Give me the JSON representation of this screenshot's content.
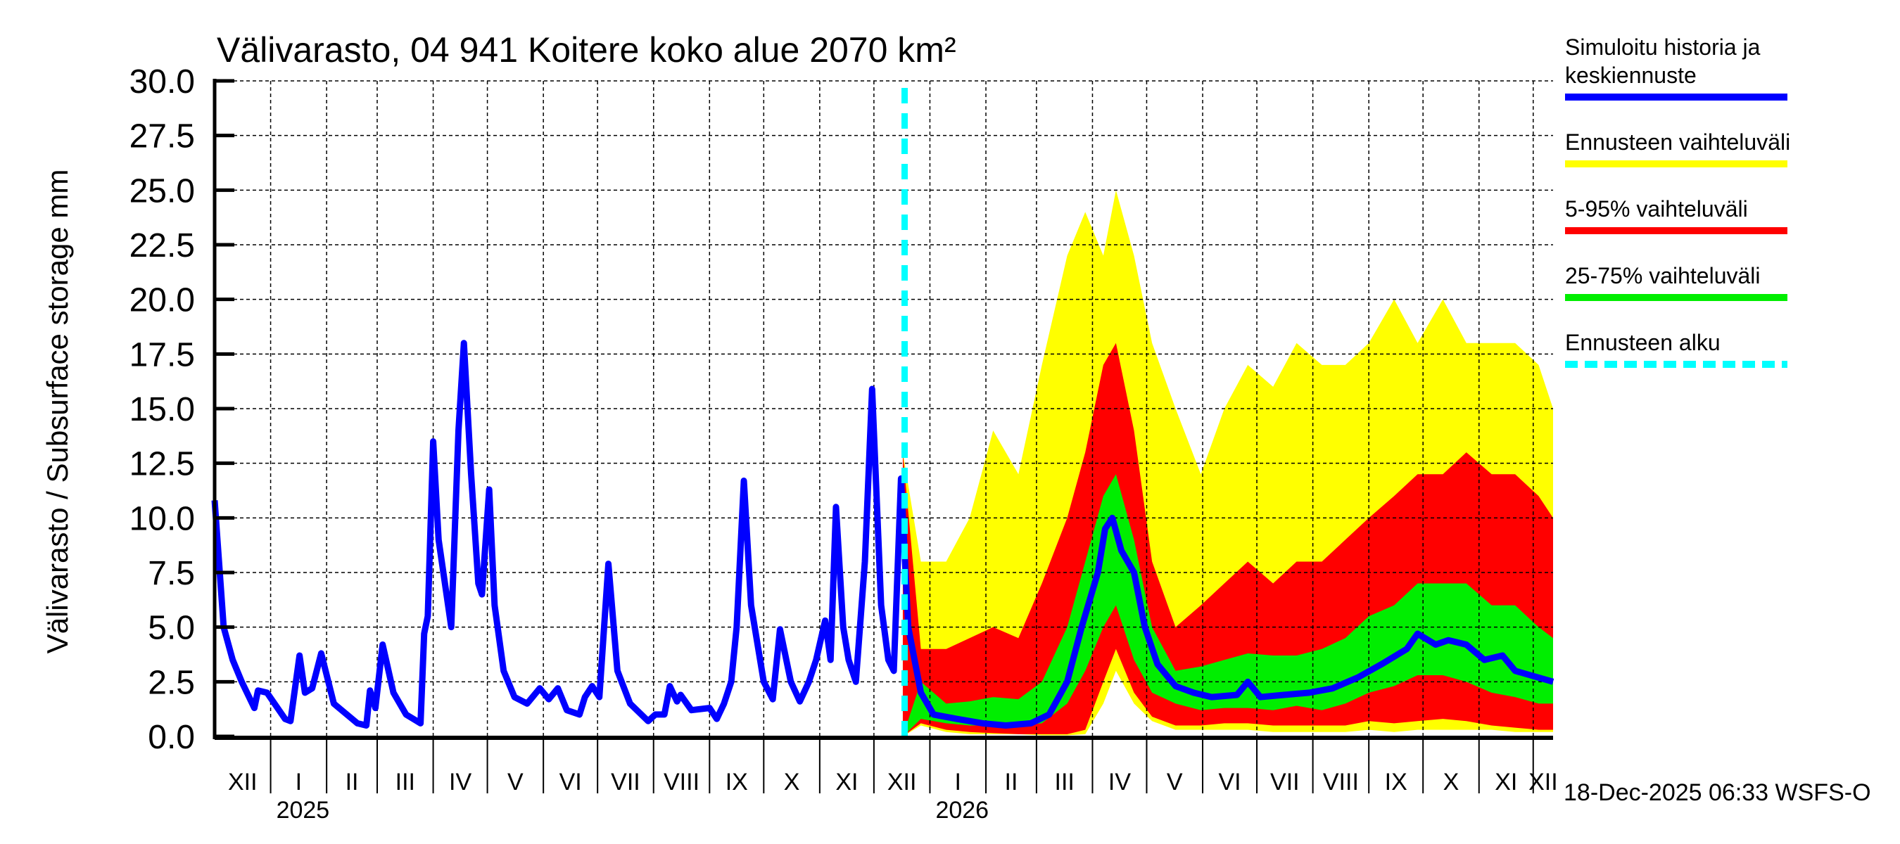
{
  "chart_data": {
    "type": "area",
    "title": "Välivarasto, 04 941 Koitere koko alue 2070 km²",
    "ylabel": "Välivarasto / Subsurface storage  mm",
    "xlabel": "",
    "x_unit": "days since 2024-12-01",
    "xlim": [
      0,
      741
    ],
    "ylim": [
      0,
      30
    ],
    "yticks": [
      "0.0",
      "2.5",
      "5.0",
      "7.5",
      "10.0",
      "12.5",
      "15.0",
      "17.5",
      "20.0",
      "22.5",
      "25.0",
      "27.5",
      "30.0"
    ],
    "grid": true,
    "months": [
      {
        "label": "XII",
        "start": 0,
        "end": 31
      },
      {
        "label": "I",
        "start": 31,
        "end": 62
      },
      {
        "label": "II",
        "start": 62,
        "end": 90
      },
      {
        "label": "III",
        "start": 90,
        "end": 121
      },
      {
        "label": "IV",
        "start": 121,
        "end": 151
      },
      {
        "label": "V",
        "start": 151,
        "end": 182
      },
      {
        "label": "VI",
        "start": 182,
        "end": 212
      },
      {
        "label": "VII",
        "start": 212,
        "end": 243
      },
      {
        "label": "VIII",
        "start": 243,
        "end": 274
      },
      {
        "label": "IX",
        "start": 274,
        "end": 304
      },
      {
        "label": "X",
        "start": 304,
        "end": 335
      },
      {
        "label": "XI",
        "start": 335,
        "end": 365
      },
      {
        "label": "XII",
        "start": 365,
        "end": 396
      },
      {
        "label": "I",
        "start": 396,
        "end": 427
      },
      {
        "label": "II",
        "start": 427,
        "end": 455
      },
      {
        "label": "III",
        "start": 455,
        "end": 486
      },
      {
        "label": "IV",
        "start": 486,
        "end": 516
      },
      {
        "label": "V",
        "start": 516,
        "end": 547
      },
      {
        "label": "VI",
        "start": 547,
        "end": 577
      },
      {
        "label": "VII",
        "start": 577,
        "end": 608
      },
      {
        "label": "VIII",
        "start": 608,
        "end": 639
      },
      {
        "label": "IX",
        "start": 639,
        "end": 669
      },
      {
        "label": "X",
        "start": 669,
        "end": 700
      },
      {
        "label": "XI",
        "start": 700,
        "end": 730
      },
      {
        "label": "XII",
        "start": 730,
        "end": 741
      }
    ],
    "years": [
      {
        "label": "2025",
        "at": 31
      },
      {
        "label": "2026",
        "at": 396
      }
    ],
    "forecast_start": 382,
    "legend": {
      "placement": "right",
      "entries": [
        {
          "label_lines": [
            "Simuloitu historia ja",
            "keskiennuste"
          ],
          "color": "#0000ff",
          "style": "solid"
        },
        {
          "label_lines": [
            "Ennusteen vaihteluväli"
          ],
          "color": "#ffff00",
          "style": "solid"
        },
        {
          "label_lines": [
            "5-95% vaihteluväli"
          ],
          "color": "#ff0000",
          "style": "solid"
        },
        {
          "label_lines": [
            "25-75% vaihteluväli"
          ],
          "color": "#00ee00",
          "style": "solid"
        },
        {
          "label_lines": [
            "Ennusteen alku"
          ],
          "color": "#00ffff",
          "style": "dashed"
        }
      ]
    },
    "series": [
      {
        "name": "Simuloitu historia ja keskiennuste",
        "color": "#0000ff",
        "points": [
          [
            0,
            10.8
          ],
          [
            5,
            5
          ],
          [
            10,
            3.5
          ],
          [
            15,
            2.5
          ],
          [
            22,
            1.3
          ],
          [
            24,
            2.1
          ],
          [
            29,
            2.0
          ],
          [
            39,
            0.8
          ],
          [
            42,
            0.7
          ],
          [
            47,
            3.7
          ],
          [
            50,
            2.0
          ],
          [
            54,
            2.2
          ],
          [
            59,
            3.8
          ],
          [
            66,
            1.5
          ],
          [
            79,
            0.6
          ],
          [
            84,
            0.5
          ],
          [
            86,
            2.1
          ],
          [
            89,
            1.3
          ],
          [
            93,
            4.2
          ],
          [
            99,
            2.0
          ],
          [
            106,
            1.0
          ],
          [
            114,
            0.6
          ],
          [
            116,
            4.7
          ],
          [
            118,
            5.5
          ],
          [
            121,
            13.5
          ],
          [
            124,
            9
          ],
          [
            131,
            5
          ],
          [
            135,
            14
          ],
          [
            138,
            18.0
          ],
          [
            142,
            12
          ],
          [
            146,
            7
          ],
          [
            148,
            6.5
          ],
          [
            152,
            11.3
          ],
          [
            155,
            6
          ],
          [
            160,
            3
          ],
          [
            166,
            1.8
          ],
          [
            173,
            1.5
          ],
          [
            180,
            2.2
          ],
          [
            185,
            1.7
          ],
          [
            190,
            2.2
          ],
          [
            195,
            1.2
          ],
          [
            202,
            1.0
          ],
          [
            205,
            1.8
          ],
          [
            209,
            2.3
          ],
          [
            213,
            1.8
          ],
          [
            218,
            7.9
          ],
          [
            223,
            3
          ],
          [
            230,
            1.5
          ],
          [
            240,
            0.7
          ],
          [
            244,
            1.0
          ],
          [
            249,
            1.0
          ],
          [
            252,
            2.3
          ],
          [
            256,
            1.6
          ],
          [
            258,
            1.9
          ],
          [
            264,
            1.2
          ],
          [
            274,
            1.3
          ],
          [
            278,
            0.8
          ],
          [
            282,
            1.5
          ],
          [
            286,
            2.5
          ],
          [
            289,
            5
          ],
          [
            293,
            11.7
          ],
          [
            297,
            6
          ],
          [
            304,
            2.5
          ],
          [
            309,
            1.7
          ],
          [
            313,
            4.9
          ],
          [
            319,
            2.5
          ],
          [
            324,
            1.6
          ],
          [
            329,
            2.5
          ],
          [
            333,
            3.5
          ],
          [
            338,
            5.3
          ],
          [
            341,
            3.5
          ],
          [
            344,
            10.5
          ],
          [
            348,
            5
          ],
          [
            351,
            3.5
          ],
          [
            355,
            2.5
          ],
          [
            360,
            8
          ],
          [
            364,
            15.9
          ],
          [
            369,
            6
          ],
          [
            373,
            3.5
          ],
          [
            376,
            3
          ],
          [
            380,
            11.8
          ],
          [
            384,
            5
          ],
          [
            391,
            2
          ],
          [
            398,
            1.0
          ],
          [
            411,
            0.8
          ],
          [
            425,
            0.6
          ],
          [
            438,
            0.5
          ],
          [
            452,
            0.6
          ],
          [
            462,
            1.0
          ],
          [
            472,
            2.5
          ],
          [
            480,
            5
          ],
          [
            489,
            7.5
          ],
          [
            493,
            9.5
          ],
          [
            497,
            10.0
          ],
          [
            502,
            8.5
          ],
          [
            509,
            7.5
          ],
          [
            515,
            5
          ],
          [
            522,
            3.3
          ],
          [
            532,
            2.3
          ],
          [
            542,
            2.0
          ],
          [
            552,
            1.8
          ],
          [
            566,
            1.9
          ],
          [
            572,
            2.5
          ],
          [
            579,
            1.8
          ],
          [
            592,
            1.9
          ],
          [
            606,
            2.0
          ],
          [
            619,
            2.2
          ],
          [
            633,
            2.7
          ],
          [
            646,
            3.3
          ],
          [
            660,
            4.0
          ],
          [
            666,
            4.7
          ],
          [
            676,
            4.2
          ],
          [
            683,
            4.4
          ],
          [
            693,
            4.2
          ],
          [
            703,
            3.5
          ],
          [
            713,
            3.7
          ],
          [
            720,
            3.0
          ],
          [
            741,
            2.5
          ]
        ]
      },
      {
        "name": "Forecast bands",
        "columns": [
          "day",
          "min",
          "p5",
          "p25",
          "p75",
          "p95",
          "max"
        ],
        "rows": [
          [
            381,
            0,
            0,
            0,
            0,
            13,
            13
          ],
          [
            391,
            0.5,
            0.6,
            0.8,
            2.5,
            4,
            8
          ],
          [
            405,
            0.2,
            0.3,
            0.6,
            1.5,
            4,
            8
          ],
          [
            418,
            0.1,
            0.2,
            0.5,
            1.6,
            4.5,
            10
          ],
          [
            431,
            0.1,
            0.15,
            0.5,
            1.8,
            5,
            14
          ],
          [
            445,
            0.1,
            0.1,
            0.5,
            1.7,
            4.5,
            12
          ],
          [
            458,
            0.05,
            0.1,
            0.6,
            2.5,
            7,
            17
          ],
          [
            472,
            0.05,
            0.1,
            1.5,
            5,
            10,
            22
          ],
          [
            482,
            0.1,
            0.3,
            3,
            8,
            13,
            24
          ],
          [
            492,
            1.5,
            2.5,
            5,
            11,
            17,
            22
          ],
          [
            499,
            3,
            4,
            6,
            12,
            18,
            25
          ],
          [
            509,
            1.5,
            2.0,
            3.5,
            9,
            14,
            22
          ],
          [
            519,
            0.7,
            0.9,
            2,
            5,
            8,
            18
          ],
          [
            532,
            0.3,
            0.5,
            1.5,
            3,
            5,
            15
          ],
          [
            546,
            0.3,
            0.5,
            1.2,
            3.2,
            6,
            12
          ],
          [
            559,
            0.3,
            0.6,
            1.3,
            3.5,
            7,
            15
          ],
          [
            572,
            0.3,
            0.6,
            1.3,
            3.8,
            8,
            17
          ],
          [
            586,
            0.2,
            0.5,
            1.2,
            3.7,
            7,
            16
          ],
          [
            599,
            0.2,
            0.5,
            1.4,
            3.7,
            8,
            18
          ],
          [
            613,
            0.2,
            0.5,
            1.2,
            4,
            8,
            17
          ],
          [
            626,
            0.2,
            0.5,
            1.5,
            4.5,
            9,
            17
          ],
          [
            639,
            0.3,
            0.7,
            2,
            5.5,
            10,
            18
          ],
          [
            653,
            0.2,
            0.6,
            2.3,
            6,
            11,
            20
          ],
          [
            666,
            0.3,
            0.7,
            2.8,
            7,
            12,
            18
          ],
          [
            680,
            0.3,
            0.8,
            2.8,
            7,
            12,
            20
          ],
          [
            693,
            0.3,
            0.7,
            2.5,
            7,
            13,
            18
          ],
          [
            707,
            0.3,
            0.5,
            2,
            6,
            12,
            18
          ],
          [
            720,
            0.2,
            0.4,
            1.8,
            6,
            12,
            18
          ],
          [
            733,
            0.2,
            0.3,
            1.5,
            5,
            11,
            17
          ],
          [
            741,
            0.2,
            0.3,
            1.5,
            4.5,
            10,
            15
          ]
        ]
      }
    ],
    "footer": "18-Dec-2025 06:33 WSFS-O"
  }
}
